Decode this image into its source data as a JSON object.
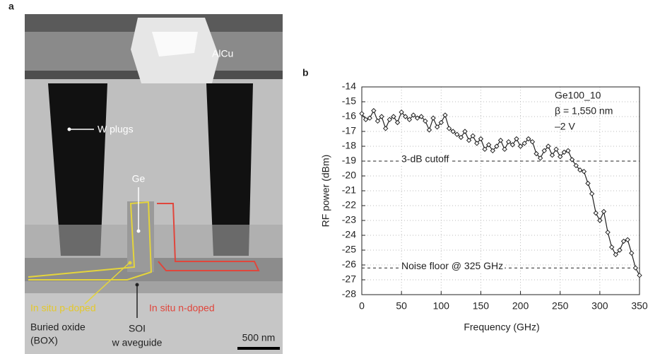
{
  "panel_a": {
    "label": "a",
    "labels": {
      "alcu": "AlCu",
      "w_plugs": "W plugs",
      "ge": "Ge",
      "p_doped": "In situ p-doped",
      "n_doped": "In situ n-doped",
      "box": [
        "Buried oxide",
        "(BOX)"
      ],
      "soi": [
        "SOI",
        "w aveguide"
      ],
      "scale_bar": "500 nm"
    }
  },
  "chart_data": {
    "type": "line",
    "panel_label": "b",
    "x_label": "Frequency (GHz)",
    "y_label": "RF power (dBm)",
    "annotations": [
      "Ge100_10",
      "β = 1,550 nm",
      "–2 V"
    ],
    "reference_lines": [
      {
        "value": -19,
        "label": "3-dB cutoff"
      },
      {
        "value": -26.2,
        "label": "Noise floor @ 325 GHz"
      }
    ],
    "xlim": [
      0,
      350
    ],
    "xticks": [
      0,
      50,
      100,
      150,
      200,
      250,
      300,
      350
    ],
    "ylim": [
      -28,
      -14
    ],
    "yticks": [
      -28,
      -27,
      -26,
      -25,
      -24,
      -23,
      -22,
      -21,
      -20,
      -19,
      -18,
      -17,
      -16,
      -15,
      -14
    ],
    "grid": true,
    "color": "#222222",
    "x": [
      0,
      5,
      10,
      15,
      20,
      25,
      30,
      35,
      40,
      45,
      50,
      55,
      60,
      65,
      70,
      75,
      80,
      85,
      90,
      95,
      100,
      105,
      110,
      115,
      120,
      125,
      130,
      135,
      140,
      145,
      150,
      155,
      160,
      165,
      170,
      175,
      180,
      185,
      190,
      195,
      200,
      205,
      210,
      215,
      220,
      225,
      230,
      235,
      240,
      245,
      250,
      255,
      260,
      265,
      270,
      275,
      280,
      285,
      290,
      295,
      300,
      305,
      310,
      315,
      320,
      325,
      330,
      335,
      340,
      345,
      350
    ],
    "values": [
      -15.8,
      -16.2,
      -16.1,
      -15.6,
      -16.3,
      -16.0,
      -16.8,
      -16.2,
      -16.0,
      -16.4,
      -15.7,
      -16.0,
      -16.2,
      -15.9,
      -16.1,
      -16.0,
      -16.3,
      -16.9,
      -16.1,
      -16.7,
      -16.4,
      -15.9,
      -16.8,
      -17.0,
      -17.2,
      -17.4,
      -17.0,
      -17.6,
      -17.3,
      -17.8,
      -17.5,
      -18.2,
      -17.9,
      -18.3,
      -18.0,
      -17.6,
      -18.2,
      -17.7,
      -17.9,
      -17.5,
      -18.0,
      -17.8,
      -17.5,
      -17.7,
      -18.5,
      -18.8,
      -18.3,
      -18.0,
      -18.6,
      -18.2,
      -18.7,
      -18.4,
      -18.3,
      -18.9,
      -19.3,
      -19.6,
      -19.7,
      -20.5,
      -21.2,
      -22.5,
      -23.0,
      -22.4,
      -23.8,
      -24.8,
      -25.3,
      -25.0,
      -24.4,
      -24.3,
      -25.2,
      -26.2,
      -26.7
    ]
  }
}
